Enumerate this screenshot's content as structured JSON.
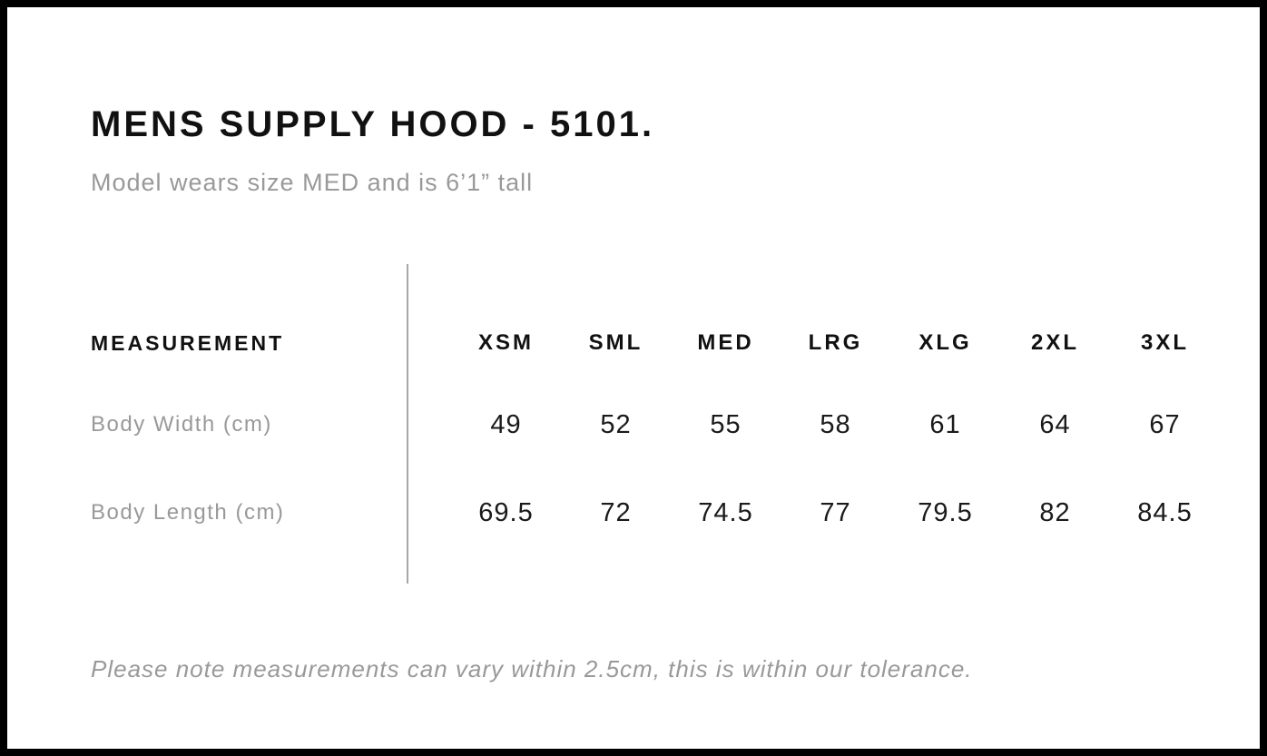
{
  "header": {
    "title": "MENS SUPPLY HOOD - 5101.",
    "subtitle": "Model wears size MED and is 6’1” tall"
  },
  "size_table": {
    "measurement_header": "MEASUREMENT",
    "size_headers": [
      "XSM",
      "SML",
      "MED",
      "LRG",
      "XLG",
      "2XL",
      "3XL"
    ],
    "rows": [
      {
        "label": "Body Width (cm)",
        "values": [
          "49",
          "52",
          "55",
          "58",
          "61",
          "64",
          "67"
        ]
      },
      {
        "label": "Body Length (cm)",
        "values": [
          "69.5",
          "72",
          "74.5",
          "77",
          "79.5",
          "82",
          "84.5"
        ]
      }
    ]
  },
  "footer": {
    "note": "Please note measurements can vary within 2.5cm, this is within our tolerance."
  },
  "colors": {
    "frame": "#000000",
    "background": "#ffffff",
    "text_primary": "#111111",
    "text_secondary": "#999999",
    "divider": "#a8a8a8"
  }
}
